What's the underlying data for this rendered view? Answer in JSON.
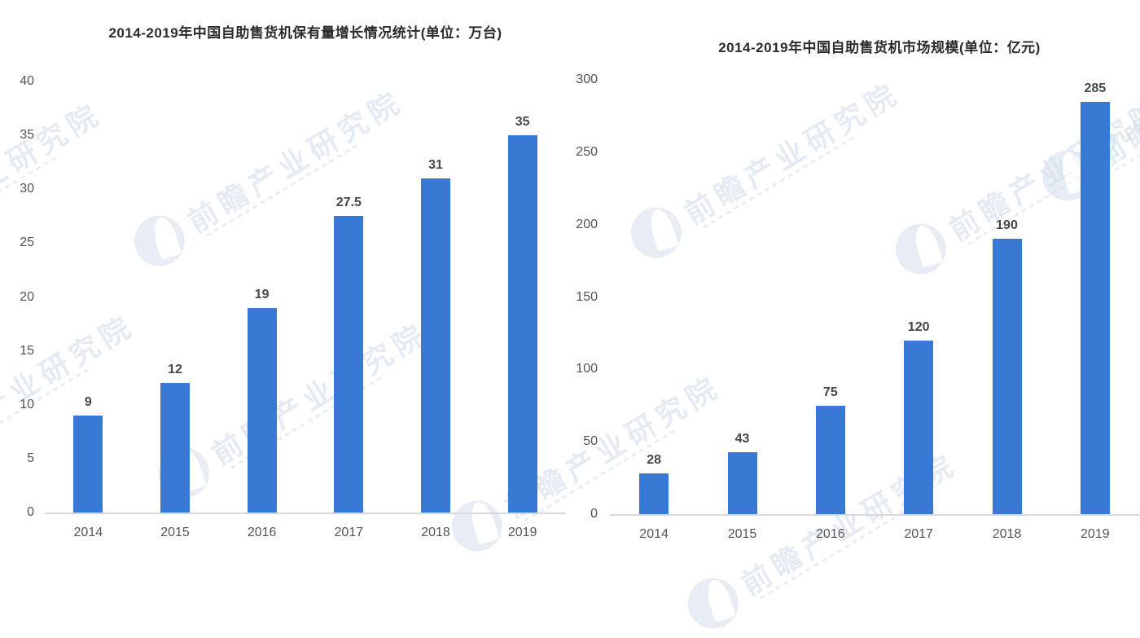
{
  "watermark": {
    "text": "前瞻产业研究院",
    "color": "#cfdbeb"
  },
  "chart_data": [
    {
      "type": "bar",
      "title": "2014-2019年中国自助售货机保有量增长情况统计(单位：万台)",
      "unit": "万台",
      "categories": [
        "2014",
        "2015",
        "2016",
        "2017",
        "2018",
        "2019"
      ],
      "values": [
        9,
        12,
        19,
        27.5,
        31,
        35
      ],
      "value_labels": [
        "9",
        "12",
        "19",
        "27.5",
        "31",
        "35"
      ],
      "ylim": [
        0,
        40
      ],
      "yticks": [
        0,
        5,
        10,
        15,
        20,
        25,
        30,
        35,
        40
      ],
      "grid": false,
      "legend": "none",
      "bar_color": "#3879D6"
    },
    {
      "type": "bar",
      "title": "2014-2019年中国自助售货机市场规模(单位：亿元)",
      "unit": "亿元",
      "categories": [
        "2014",
        "2015",
        "2016",
        "2017",
        "2018",
        "2019"
      ],
      "values": [
        28,
        43,
        75,
        120,
        190,
        285
      ],
      "value_labels": [
        "28",
        "43",
        "75",
        "120",
        "190",
        "285"
      ],
      "ylim": [
        0,
        300
      ],
      "yticks": [
        0,
        50,
        100,
        150,
        200,
        250,
        300
      ],
      "grid": false,
      "legend": "none",
      "bar_color": "#3879D6"
    }
  ]
}
